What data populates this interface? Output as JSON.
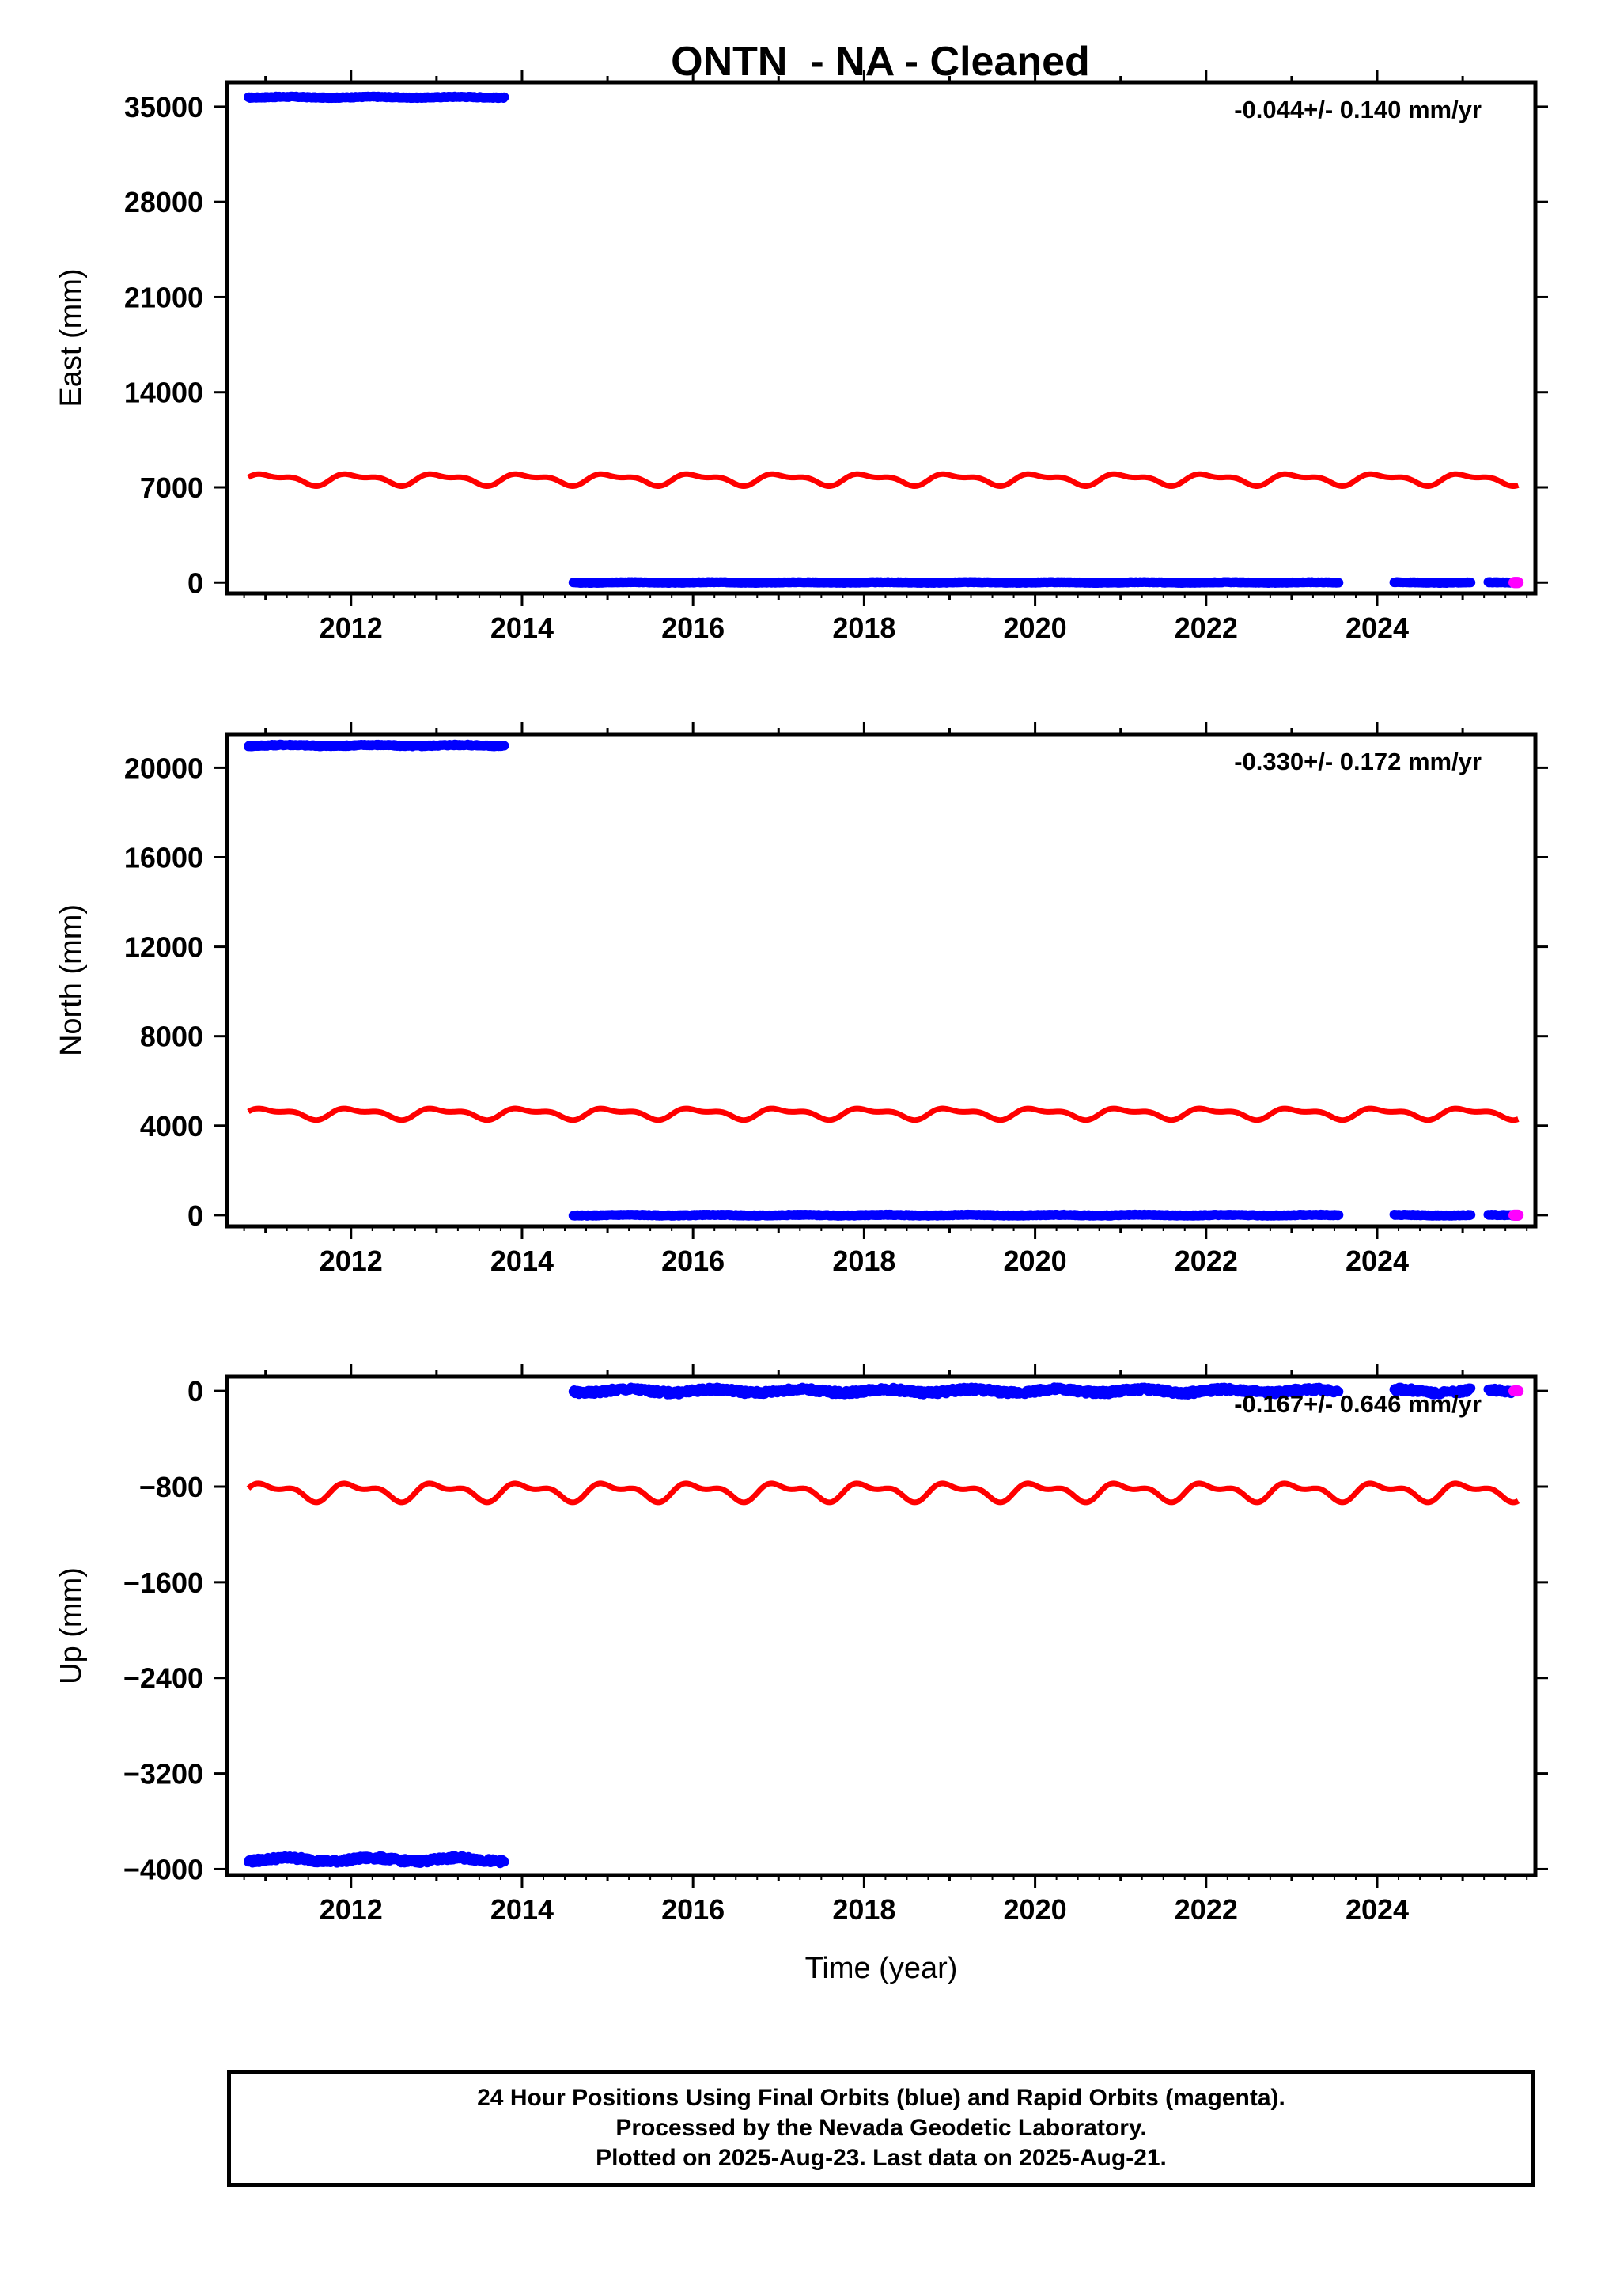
{
  "title": "ONTN  - NA - Cleaned",
  "colors": {
    "final": "#0000ff",
    "rapid": "#ff00ff",
    "model": "#ff0000"
  },
  "chart_data": [
    {
      "type": "scatter",
      "ylabel": "East (mm)",
      "annotation": "-0.044+/- 0.140 mm/yr",
      "xlim": [
        2010.55,
        2025.85
      ],
      "ylim": [
        -800,
        36800
      ],
      "xticks": [
        2012,
        2014,
        2016,
        2018,
        2020,
        2022,
        2024
      ],
      "yticks": [
        0,
        7000,
        14000,
        21000,
        28000,
        35000
      ],
      "final_segments": [
        {
          "x": [
            2010.8,
            2013.8
          ],
          "y": 35700,
          "jitter": 40
        },
        {
          "x": [
            2014.6,
            2023.55
          ],
          "y": 0,
          "jitter": 25
        },
        {
          "x": [
            2024.2,
            2025.1
          ],
          "y": 0,
          "jitter": 25
        },
        {
          "x": [
            2025.3,
            2025.6
          ],
          "y": 0,
          "jitter": 25
        }
      ],
      "rapid_segments": [
        {
          "x": [
            2025.6,
            2025.65
          ],
          "y": 0
        }
      ],
      "model": {
        "x": [
          2010.8,
          2025.65
        ],
        "mean": 7600,
        "amp1": 350,
        "amp2": 180
      }
    },
    {
      "type": "scatter",
      "ylabel": "North (mm)",
      "annotation": "-0.330+/- 0.172 mm/yr",
      "xlim": [
        2010.55,
        2025.85
      ],
      "ylim": [
        -500,
        21500
      ],
      "xticks": [
        2012,
        2014,
        2016,
        2018,
        2020,
        2022,
        2024
      ],
      "yticks": [
        0,
        4000,
        8000,
        12000,
        16000,
        20000
      ],
      "final_segments": [
        {
          "x": [
            2010.8,
            2013.8
          ],
          "y": 21000,
          "jitter": 30
        },
        {
          "x": [
            2014.6,
            2023.55
          ],
          "y": 0,
          "jitter": 20
        },
        {
          "x": [
            2024.2,
            2025.1
          ],
          "y": 0,
          "jitter": 20
        },
        {
          "x": [
            2025.3,
            2025.6
          ],
          "y": 0,
          "jitter": 20
        }
      ],
      "rapid_segments": [
        {
          "x": [
            2025.6,
            2025.65
          ],
          "y": 0
        }
      ],
      "model": {
        "x": [
          2010.8,
          2025.65
        ],
        "mean": 4550,
        "amp1": 200,
        "amp2": 110
      }
    },
    {
      "type": "scatter",
      "ylabel": "Up (mm)",
      "annotation": "-0.167+/- 0.646 mm/yr",
      "xlabel": "Time (year)",
      "xlim": [
        2010.55,
        2025.85
      ],
      "ylim": [
        -4050,
        120
      ],
      "xticks": [
        2012,
        2014,
        2016,
        2018,
        2020,
        2022,
        2024
      ],
      "yticks": [
        0,
        -800,
        -1600,
        -2400,
        -3200,
        -4000
      ],
      "final_segments": [
        {
          "x": [
            2010.8,
            2013.8
          ],
          "y": -3920,
          "jitter": 18
        },
        {
          "x": [
            2014.6,
            2023.55
          ],
          "y": 0,
          "jitter": 18
        },
        {
          "x": [
            2024.2,
            2025.1
          ],
          "y": 0,
          "jitter": 18
        },
        {
          "x": [
            2025.3,
            2025.6
          ],
          "y": 0,
          "jitter": 18
        }
      ],
      "rapid_segments": [
        {
          "x": [
            2025.6,
            2025.65
          ],
          "y": 0
        }
      ],
      "model": {
        "x": [
          2010.8,
          2025.65
        ],
        "mean": -840,
        "amp1": 60,
        "amp2": 35
      }
    }
  ],
  "footer": {
    "line1": "24 Hour Positions Using Final Orbits (blue) and Rapid Orbits (magenta).",
    "line2": "Processed by the Nevada Geodetic Laboratory.",
    "line3": "Plotted on 2025-Aug-23. Last data on 2025-Aug-21."
  }
}
